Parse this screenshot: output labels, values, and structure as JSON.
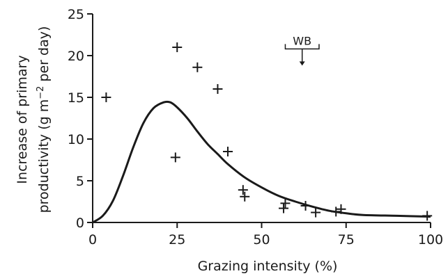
{
  "chart_data": {
    "type": "scatter",
    "xlabel": "Grazing intensity (%)",
    "ylabel_line1": "Increase of primary",
    "ylabel_line2_pre": "productivity (g m",
    "ylabel_line2_sup": "−2",
    "ylabel_line2_post": " per day)",
    "xlim": [
      0,
      100
    ],
    "ylim": [
      0,
      25
    ],
    "xticks": [
      0,
      25,
      50,
      75,
      100
    ],
    "yticks": [
      0,
      5,
      10,
      15,
      20,
      25
    ],
    "grid": false,
    "series": [
      {
        "kind": "points",
        "marker": "+",
        "x": [
          4,
          25,
          24.5,
          31,
          37,
          40,
          44.5,
          45,
          56.5,
          57,
          63,
          66,
          72,
          73.5,
          99
        ],
        "y": [
          15,
          21,
          7.8,
          18.6,
          16,
          8.5,
          3.9,
          3.1,
          1.7,
          2.3,
          2.0,
          1.2,
          1.3,
          1.6,
          0.8
        ]
      },
      {
        "kind": "fitted-curve",
        "x": [
          0,
          3,
          6,
          9,
          12,
          15,
          18,
          21,
          23,
          25,
          28,
          31,
          34,
          37,
          40,
          45,
          50,
          55,
          60,
          65,
          70,
          75,
          80,
          90,
          100
        ],
        "y": [
          0,
          0.8,
          2.6,
          5.6,
          9.0,
          11.9,
          13.7,
          14.4,
          14.4,
          13.8,
          12.5,
          10.9,
          9.4,
          8.2,
          7.0,
          5.4,
          4.2,
          3.2,
          2.5,
          1.9,
          1.4,
          1.1,
          0.9,
          0.8,
          0.7
        ]
      }
    ],
    "annotation": {
      "label": "WB",
      "range_x": [
        57,
        67
      ],
      "arrow_x": 62,
      "bracket_y": 20.8,
      "arrow_tip_y": 18.8
    },
    "colors": {
      "ink": "#1a1a1a",
      "background": "#ffffff"
    }
  }
}
